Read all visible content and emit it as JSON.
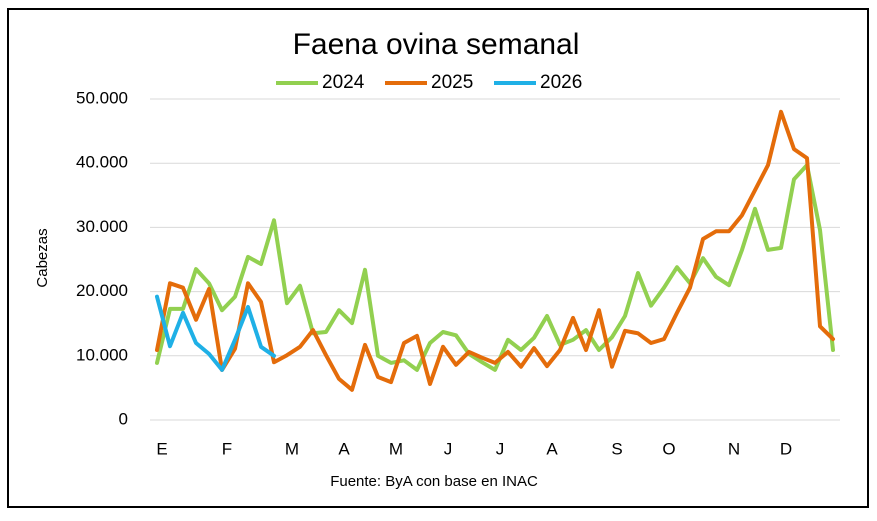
{
  "chart_data": {
    "type": "line",
    "title": "Faena ovina semanal",
    "ylabel": "Cabezas",
    "source": "Fuente: ByA con base en INAC",
    "categories": [
      "E",
      null,
      null,
      null,
      null,
      "F",
      null,
      null,
      null,
      null,
      "M",
      null,
      null,
      null,
      "A",
      null,
      null,
      null,
      "M",
      null,
      null,
      null,
      "J",
      null,
      null,
      null,
      "J",
      null,
      null,
      null,
      "A",
      null,
      null,
      null,
      null,
      "S",
      null,
      null,
      null,
      "O",
      null,
      null,
      null,
      null,
      "N",
      null,
      null,
      null,
      "D",
      null,
      null,
      null,
      null
    ],
    "series": [
      {
        "name": "2024",
        "color": "#92d050",
        "values": [
          8900,
          17300,
          17300,
          23500,
          21300,
          17100,
          19200,
          25400,
          24300,
          31100,
          18200,
          20900,
          13500,
          13700,
          17100,
          15100,
          23400,
          10000,
          8900,
          9300,
          7800,
          12000,
          13700,
          13200,
          10300,
          9000,
          7800,
          12500,
          10900,
          12800,
          16200,
          11700,
          12500,
          14000,
          10900,
          12900,
          16200,
          22900,
          17800,
          20600,
          23800,
          21300,
          25200,
          22300,
          21000,
          26500,
          32900,
          26500,
          26800,
          37500,
          39700,
          29600,
          10900
        ]
      },
      {
        "name": "2025",
        "color": "#e46c0a",
        "values": [
          10900,
          21300,
          20600,
          15600,
          20400,
          7800,
          11100,
          21300,
          18400,
          9000,
          10100,
          11400,
          14000,
          10100,
          6400,
          4700,
          11700,
          6700,
          5900,
          12000,
          13100,
          5600,
          11400,
          8600,
          10600,
          9700,
          8900,
          10600,
          8300,
          11200,
          8400,
          10900,
          15900,
          10900,
          17100,
          8300,
          13900,
          13500,
          12000,
          12600,
          16700,
          20600,
          28200,
          29400,
          29400,
          31900,
          35800,
          39700,
          48000,
          42200,
          40800,
          14600,
          12600
        ]
      },
      {
        "name": "2026",
        "color": "#1fb0e6",
        "values": [
          19200,
          11500,
          16700,
          12000,
          10300,
          7800,
          12500,
          17600,
          11400,
          10000,
          null,
          null,
          null,
          null,
          null,
          null,
          null,
          null,
          null,
          null,
          null,
          null,
          null,
          null,
          null,
          null,
          null,
          null,
          null,
          null,
          null,
          null,
          null,
          null,
          null,
          null,
          null,
          null,
          null,
          null,
          null,
          null,
          null,
          null,
          null,
          null,
          null,
          null,
          null,
          null,
          null,
          null,
          null
        ]
      }
    ],
    "ylim": [
      0,
      55000
    ],
    "yticks": [
      0,
      {
        "value": 10000,
        "label": "10.000"
      },
      {
        "value": 20000,
        "label": "20.000"
      },
      {
        "value": 30000,
        "label": "30.000"
      },
      {
        "value": 40000,
        "label": "40.000"
      },
      {
        "value": 50000,
        "label": "50.000"
      }
    ],
    "grid": true,
    "legend": "top"
  }
}
